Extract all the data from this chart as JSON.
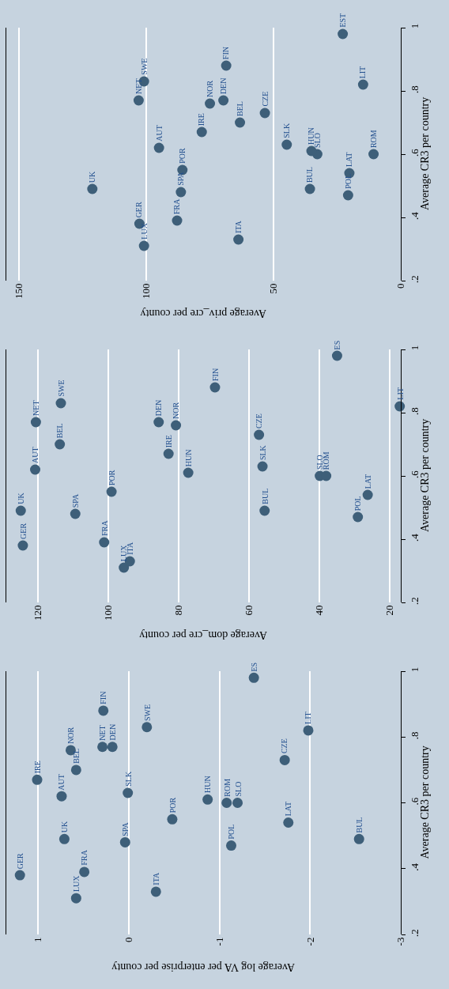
{
  "chart_data": [
    {
      "type": "scatter",
      "xlabel": "Average priv_cre per county",
      "ylabel": "Average CR3 per country",
      "color": "#3e5f79",
      "marker": "circle",
      "grid": "x",
      "ylim": [
        0.2,
        1
      ],
      "yticks": [
        {
          "value": 0.2,
          "label": ".2"
        },
        {
          "value": 0.4,
          "label": ".4"
        },
        {
          "value": 0.6,
          "label": ".6"
        },
        {
          "value": 0.8,
          "label": ".8"
        },
        1
      ],
      "xlim": [
        155,
        0
      ],
      "xticks": [
        150,
        100,
        50,
        0
      ],
      "x": [
        102.7,
        100.9,
        87.9,
        121.2,
        86.4,
        63.8,
        20.7,
        35.7,
        85.8,
        20.2,
        32.8,
        10.7,
        35.1,
        44.8,
        95.0,
        78.2,
        63.2,
        53.4,
        75.0,
        69.7,
        103.0,
        14.8,
        100.9,
        68.6,
        22.8
      ],
      "values": [
        0.38,
        0.31,
        0.39,
        0.49,
        0.48,
        0.33,
        0.47,
        0.49,
        0.55,
        0.54,
        0.6,
        0.6,
        0.61,
        0.63,
        0.62,
        0.67,
        0.7,
        0.73,
        0.76,
        0.77,
        0.77,
        0.82,
        0.83,
        0.88,
        0.98
      ],
      "annotations": [
        {
          "text": "GER",
          "x": 102.7,
          "y": 0.38
        },
        {
          "text": "LUX",
          "x": 100.9,
          "y": 0.31
        },
        {
          "text": "FRA",
          "x": 87.9,
          "y": 0.39
        },
        {
          "text": "UK",
          "x": 121.2,
          "y": 0.49
        },
        {
          "text": "SPA",
          "x": 86.4,
          "y": 0.48
        },
        {
          "text": "ITA",
          "x": 63.8,
          "y": 0.33
        },
        {
          "text": "POL",
          "x": 20.7,
          "y": 0.47
        },
        {
          "text": "BUL",
          "x": 35.7,
          "y": 0.49
        },
        {
          "text": "POR",
          "x": 85.8,
          "y": 0.55
        },
        {
          "text": "LAT",
          "x": 20.2,
          "y": 0.54
        },
        {
          "text": "SLO",
          "x": 32.8,
          "y": 0.6
        },
        {
          "text": "ROM",
          "x": 10.7,
          "y": 0.6
        },
        {
          "text": "HUN",
          "x": 35.1,
          "y": 0.61
        },
        {
          "text": "SLK",
          "x": 44.8,
          "y": 0.63
        },
        {
          "text": "AUT",
          "x": 95.0,
          "y": 0.62
        },
        {
          "text": "IRE",
          "x": 78.2,
          "y": 0.67
        },
        {
          "text": "BEL",
          "x": 63.2,
          "y": 0.7
        },
        {
          "text": "CZE",
          "x": 53.4,
          "y": 0.73
        },
        {
          "text": "NOR",
          "x": 75.0,
          "y": 0.76
        },
        {
          "text": "DEN",
          "x": 69.7,
          "y": 0.77
        },
        {
          "text": "NET",
          "x": 103.0,
          "y": 0.77
        },
        {
          "text": "LIT",
          "x": 14.8,
          "y": 0.82
        },
        {
          "text": "SWE",
          "x": 100.9,
          "y": 0.83
        },
        {
          "text": "FIN",
          "x": 68.6,
          "y": 0.88
        },
        {
          "text": "EST",
          "x": 22.8,
          "y": 0.98
        }
      ]
    },
    {
      "type": "scatter",
      "xlabel": "Average dom_cre per county",
      "ylabel": "Average CR3 per country",
      "color": "#3e5f79",
      "marker": "circle",
      "grid": "x",
      "ylim": [
        0.2,
        1
      ],
      "yticks": [
        {
          "value": 0.2,
          "label": ".2"
        },
        {
          "value": 0.4,
          "label": ".4"
        },
        {
          "value": 0.6,
          "label": ".6"
        },
        {
          "value": 0.8,
          "label": ".8"
        },
        1
      ],
      "xlim": [
        129,
        16.9
      ],
      "xticks": [
        120,
        100,
        80,
        60,
        40,
        20
      ],
      "x": [
        124.3,
        95.6,
        101.2,
        124.9,
        109.4,
        93.9,
        29.1,
        55.6,
        99.1,
        26.3,
        39.9,
        38.1,
        77.3,
        56.2,
        120.8,
        82.9,
        113.8,
        57.2,
        80.8,
        85.7,
        120.6,
        17.2,
        113.5,
        69.7,
        35.0
      ],
      "values": [
        0.38,
        0.31,
        0.39,
        0.49,
        0.48,
        0.33,
        0.47,
        0.49,
        0.55,
        0.54,
        0.6,
        0.6,
        0.61,
        0.63,
        0.62,
        0.67,
        0.7,
        0.73,
        0.76,
        0.77,
        0.77,
        0.82,
        0.83,
        0.88,
        0.98
      ],
      "annotations": [
        {
          "text": "GER",
          "x": 124.3,
          "y": 0.38
        },
        {
          "text": "LUX",
          "x": 95.6,
          "y": 0.31
        },
        {
          "text": "FRA",
          "x": 101.2,
          "y": 0.39
        },
        {
          "text": "UK",
          "x": 124.9,
          "y": 0.49
        },
        {
          "text": "SPA",
          "x": 109.4,
          "y": 0.48
        },
        {
          "text": "ITA",
          "x": 93.9,
          "y": 0.33
        },
        {
          "text": "POL",
          "x": 29.1,
          "y": 0.47
        },
        {
          "text": "BUL",
          "x": 55.6,
          "y": 0.49
        },
        {
          "text": "POR",
          "x": 99.1,
          "y": 0.55
        },
        {
          "text": "LAT",
          "x": 26.3,
          "y": 0.54
        },
        {
          "text": "SLO",
          "x": 39.9,
          "y": 0.6
        },
        {
          "text": "ROM",
          "x": 38.1,
          "y": 0.6
        },
        {
          "text": "HUN",
          "x": 77.3,
          "y": 0.61
        },
        {
          "text": "SLK",
          "x": 56.2,
          "y": 0.63
        },
        {
          "text": "AUT",
          "x": 120.8,
          "y": 0.62
        },
        {
          "text": "IRE",
          "x": 82.9,
          "y": 0.67
        },
        {
          "text": "BEL",
          "x": 113.8,
          "y": 0.7
        },
        {
          "text": "CZE",
          "x": 57.2,
          "y": 0.73
        },
        {
          "text": "NOR",
          "x": 80.8,
          "y": 0.76
        },
        {
          "text": "DEN",
          "x": 85.7,
          "y": 0.77
        },
        {
          "text": "NET",
          "x": 120.6,
          "y": 0.77
        },
        {
          "text": "LIT",
          "x": 17.2,
          "y": 0.82
        },
        {
          "text": "SWE",
          "x": 113.5,
          "y": 0.83
        },
        {
          "text": "FIN",
          "x": 69.7,
          "y": 0.88
        },
        {
          "text": "ES",
          "x": 35.0,
          "y": 0.98
        }
      ]
    },
    {
      "type": "scatter",
      "xlabel": "Average log VA per enterprise per county",
      "ylabel": "Average CR3 per country",
      "color": "#3e5f79",
      "marker": "circle",
      "grid": "x",
      "ylim": [
        0.2,
        1
      ],
      "yticks": [
        {
          "value": 0.2,
          "label": ".2"
        },
        {
          "value": 0.4,
          "label": ".4"
        },
        {
          "value": 0.6,
          "label": ".6"
        },
        {
          "value": 0.8,
          "label": ".8"
        },
        1
      ],
      "xlim": [
        1.35,
        -3
      ],
      "xticks": [
        1,
        0,
        -1,
        -2,
        -3
      ],
      "x": [
        1.2,
        0.58,
        0.49,
        0.71,
        0.04,
        -0.3,
        -1.13,
        -2.54,
        -0.48,
        -1.76,
        -1.2,
        -1.08,
        -0.87,
        0.01,
        0.74,
        1.01,
        0.58,
        -1.72,
        0.64,
        0.18,
        0.29,
        -1.98,
        -0.2,
        0.28,
        -1.38
      ],
      "values": [
        0.38,
        0.31,
        0.39,
        0.49,
        0.48,
        0.33,
        0.47,
        0.49,
        0.55,
        0.54,
        0.6,
        0.6,
        0.61,
        0.63,
        0.62,
        0.67,
        0.7,
        0.73,
        0.76,
        0.77,
        0.77,
        0.82,
        0.83,
        0.88,
        0.98
      ],
      "annotations": [
        {
          "text": "GER",
          "x": 1.2,
          "y": 0.38
        },
        {
          "text": "LUX",
          "x": 0.58,
          "y": 0.31
        },
        {
          "text": "FRA",
          "x": 0.49,
          "y": 0.39
        },
        {
          "text": "UK",
          "x": 0.71,
          "y": 0.49
        },
        {
          "text": "SPA",
          "x": 0.04,
          "y": 0.48
        },
        {
          "text": "ITA",
          "x": -0.3,
          "y": 0.33
        },
        {
          "text": "POL",
          "x": -1.13,
          "y": 0.47
        },
        {
          "text": "BUL",
          "x": -2.54,
          "y": 0.49
        },
        {
          "text": "POR",
          "x": -0.48,
          "y": 0.55
        },
        {
          "text": "LAT",
          "x": -1.76,
          "y": 0.54
        },
        {
          "text": "SLO",
          "x": -1.2,
          "y": 0.6
        },
        {
          "text": "ROM",
          "x": -1.08,
          "y": 0.6
        },
        {
          "text": "HUN",
          "x": -0.87,
          "y": 0.61
        },
        {
          "text": "SLK",
          "x": 0.01,
          "y": 0.63
        },
        {
          "text": "AUT",
          "x": 0.74,
          "y": 0.62
        },
        {
          "text": "IRE",
          "x": 1.01,
          "y": 0.67
        },
        {
          "text": "BEL",
          "x": 0.58,
          "y": 0.7
        },
        {
          "text": "CZE",
          "x": -1.72,
          "y": 0.73
        },
        {
          "text": "NOR",
          "x": 0.64,
          "y": 0.76
        },
        {
          "text": "DEN",
          "x": 0.18,
          "y": 0.77
        },
        {
          "text": "NET",
          "x": 0.29,
          "y": 0.77
        },
        {
          "text": "LIT",
          "x": -1.98,
          "y": 0.82
        },
        {
          "text": "SWE",
          "x": -0.2,
          "y": 0.83
        },
        {
          "text": "FIN",
          "x": 0.28,
          "y": 0.88
        },
        {
          "text": "ES",
          "x": -1.38,
          "y": 0.98
        }
      ]
    }
  ]
}
